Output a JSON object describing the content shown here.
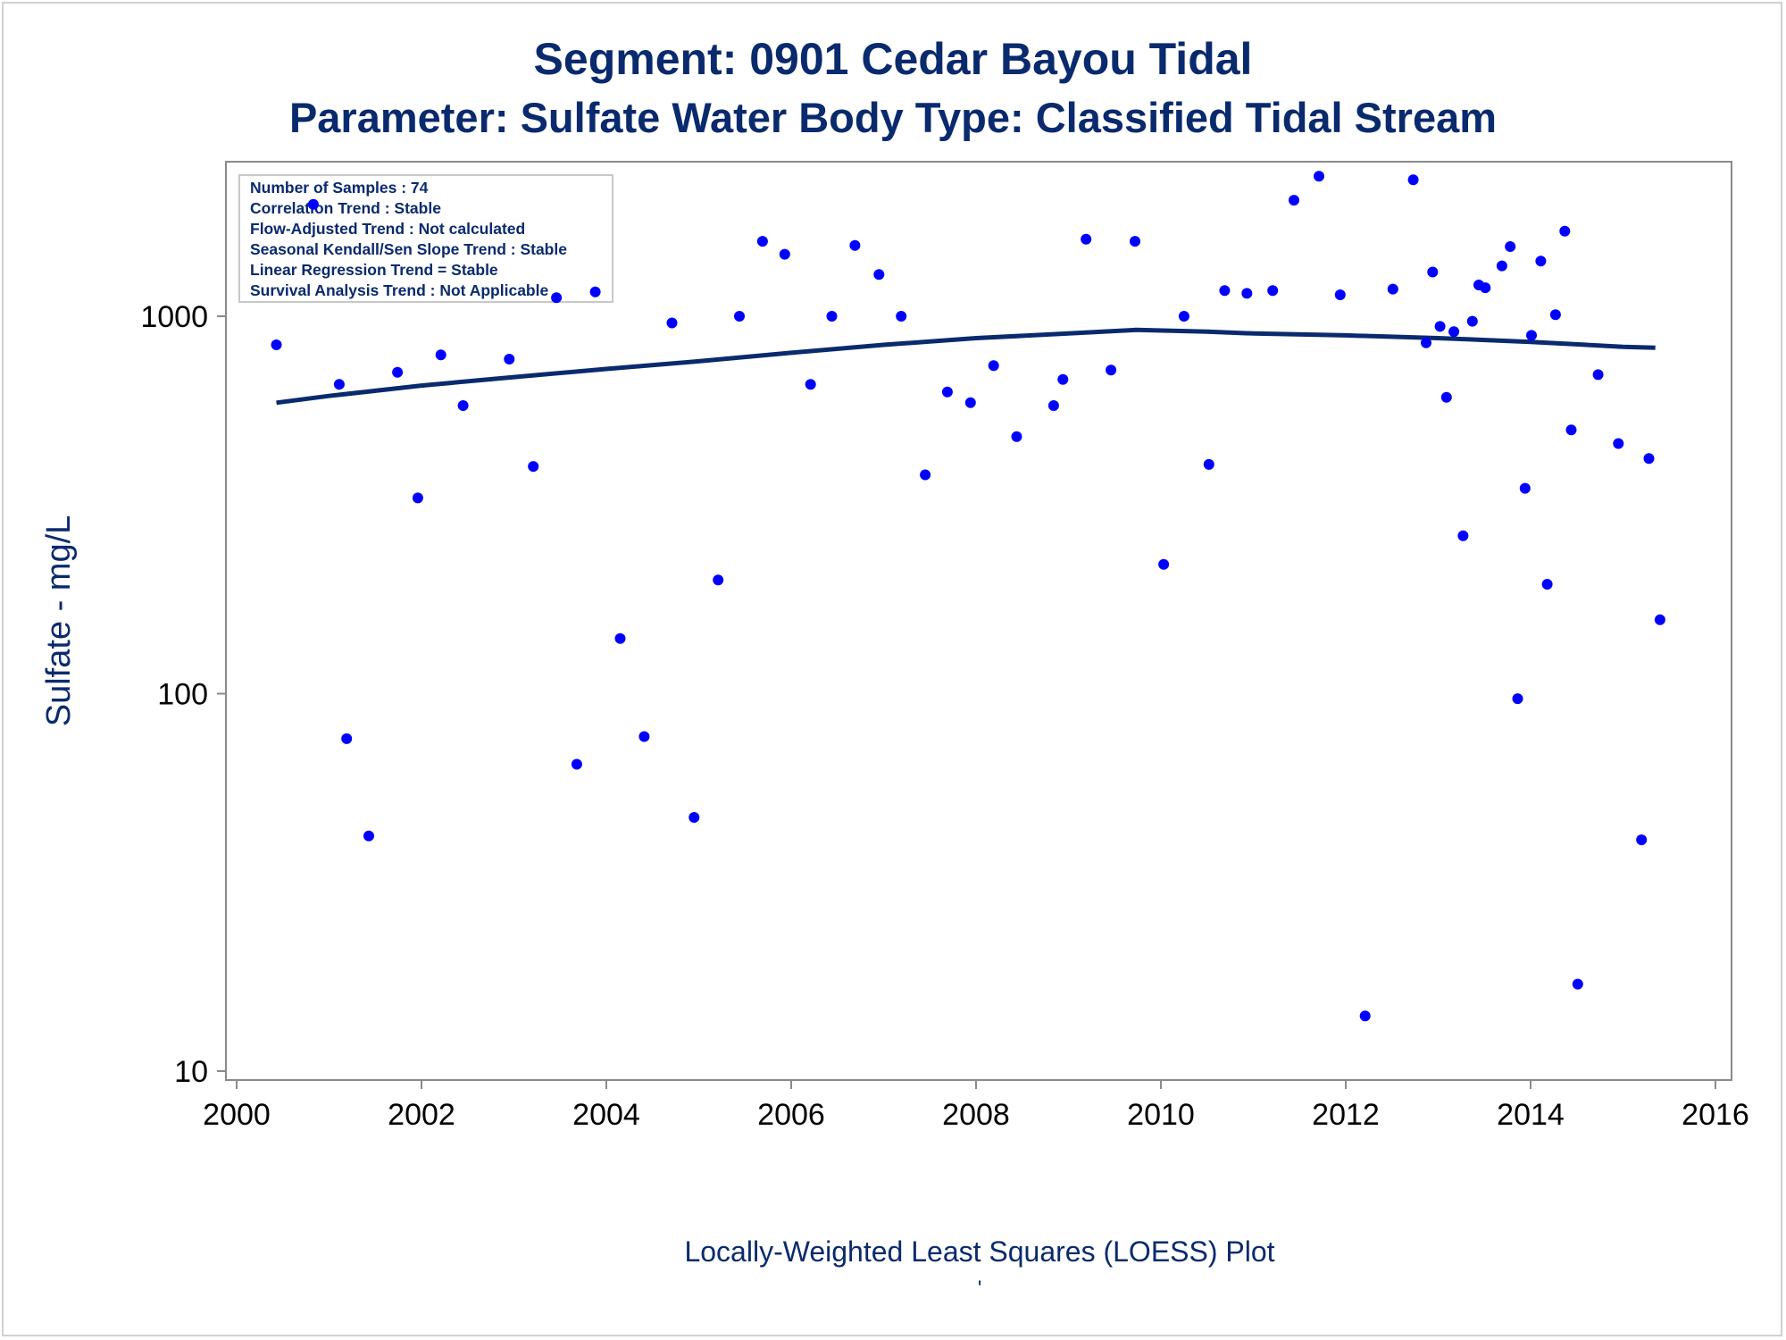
{
  "colors": {
    "title": "#0a2a6e",
    "points": "#0000ff",
    "loess": "#0a2a6e",
    "axis": "#8a8a8a",
    "tick_labels": "#000000"
  },
  "footer": {
    "caption": "Locally-Weighted Least Squares (LOESS) Plot",
    "mark": "'"
  },
  "chart_data": {
    "type": "scatter",
    "title": "Segment: 0901  Cedar Bayou Tidal",
    "subtitle": "Parameter: Sulfate   Water Body Type: Classified Tidal Stream",
    "xlabel": "",
    "ylabel": "Sulfate - mg/L",
    "x_scale": "linear",
    "y_scale": "log",
    "xlim": [
      2000,
      2016
    ],
    "ylim": [
      9.5,
      2600
    ],
    "x_ticks": [
      "2000",
      "2002",
      "2004",
      "2006",
      "2008",
      "2010",
      "2012",
      "2014",
      "2016"
    ],
    "y_ticks": [
      "10",
      "100",
      "1000"
    ],
    "grid": false,
    "legend_position": "top-left",
    "inset_box": [
      "Number of Samples : 74",
      "Correlation Trend : Stable",
      "Flow-Adjusted Trend : Not calculated",
      "Seasonal Kendall/Sen Slope Trend : Stable",
      "Linear Regression Trend = Stable",
      "Survival Analysis Trend : Not Applicable"
    ],
    "series": [
      {
        "kind": "points",
        "points": [
          {
            "x": 2000.43,
            "y": 840
          },
          {
            "x": 2000.83,
            "y": 1980
          },
          {
            "x": 2001.11,
            "y": 660
          },
          {
            "x": 2001.19,
            "y": 76
          },
          {
            "x": 2001.43,
            "y": 42
          },
          {
            "x": 2001.74,
            "y": 710
          },
          {
            "x": 2001.96,
            "y": 330
          },
          {
            "x": 2002.21,
            "y": 790
          },
          {
            "x": 2002.45,
            "y": 580
          },
          {
            "x": 2002.95,
            "y": 770
          },
          {
            "x": 2003.21,
            "y": 400
          },
          {
            "x": 2003.46,
            "y": 1120
          },
          {
            "x": 2003.68,
            "y": 65
          },
          {
            "x": 2003.88,
            "y": 1160
          },
          {
            "x": 2004.15,
            "y": 140
          },
          {
            "x": 2004.41,
            "y": 77
          },
          {
            "x": 2004.71,
            "y": 960
          },
          {
            "x": 2004.95,
            "y": 47
          },
          {
            "x": 2005.21,
            "y": 200
          },
          {
            "x": 2005.44,
            "y": 1000
          },
          {
            "x": 2005.69,
            "y": 1580
          },
          {
            "x": 2005.93,
            "y": 1460
          },
          {
            "x": 2006.21,
            "y": 660
          },
          {
            "x": 2006.44,
            "y": 1000
          },
          {
            "x": 2006.69,
            "y": 1540
          },
          {
            "x": 2006.95,
            "y": 1290
          },
          {
            "x": 2007.19,
            "y": 1000
          },
          {
            "x": 2007.45,
            "y": 380
          },
          {
            "x": 2007.69,
            "y": 630
          },
          {
            "x": 2007.94,
            "y": 590
          },
          {
            "x": 2008.19,
            "y": 740
          },
          {
            "x": 2008.44,
            "y": 480
          },
          {
            "x": 2008.84,
            "y": 580
          },
          {
            "x": 2008.94,
            "y": 680
          },
          {
            "x": 2009.19,
            "y": 1600
          },
          {
            "x": 2009.46,
            "y": 720
          },
          {
            "x": 2009.72,
            "y": 1580
          },
          {
            "x": 2010.03,
            "y": 220
          },
          {
            "x": 2010.25,
            "y": 1000
          },
          {
            "x": 2010.52,
            "y": 405
          },
          {
            "x": 2010.69,
            "y": 1170
          },
          {
            "x": 2010.93,
            "y": 1150
          },
          {
            "x": 2011.21,
            "y": 1170
          },
          {
            "x": 2011.44,
            "y": 2030
          },
          {
            "x": 2011.71,
            "y": 2350
          },
          {
            "x": 2011.94,
            "y": 1140
          },
          {
            "x": 2012.21,
            "y": 14
          },
          {
            "x": 2012.51,
            "y": 1180
          },
          {
            "x": 2012.73,
            "y": 2300
          },
          {
            "x": 2012.87,
            "y": 850
          },
          {
            "x": 2012.94,
            "y": 1310
          },
          {
            "x": 2013.02,
            "y": 940
          },
          {
            "x": 2013.09,
            "y": 610
          },
          {
            "x": 2013.17,
            "y": 910
          },
          {
            "x": 2013.27,
            "y": 262
          },
          {
            "x": 2013.37,
            "y": 970
          },
          {
            "x": 2013.44,
            "y": 1210
          },
          {
            "x": 2013.51,
            "y": 1190
          },
          {
            "x": 2013.69,
            "y": 1360
          },
          {
            "x": 2013.78,
            "y": 1530
          },
          {
            "x": 2013.86,
            "y": 97
          },
          {
            "x": 2013.94,
            "y": 350
          },
          {
            "x": 2014.01,
            "y": 890
          },
          {
            "x": 2014.11,
            "y": 1400
          },
          {
            "x": 2014.18,
            "y": 195
          },
          {
            "x": 2014.27,
            "y": 1010
          },
          {
            "x": 2014.37,
            "y": 1680
          },
          {
            "x": 2014.44,
            "y": 500
          },
          {
            "x": 2014.51,
            "y": 17
          },
          {
            "x": 2014.73,
            "y": 700
          },
          {
            "x": 2014.95,
            "y": 460
          },
          {
            "x": 2015.2,
            "y": 41
          },
          {
            "x": 2015.28,
            "y": 420
          },
          {
            "x": 2015.4,
            "y": 157
          }
        ]
      },
      {
        "kind": "loess",
        "x": [
          2000.43,
          2001.0,
          2002.0,
          2003.0,
          2004.0,
          2005.0,
          2006.0,
          2007.0,
          2008.0,
          2009.0,
          2009.73,
          2010.5,
          2011.0,
          2012.0,
          2013.0,
          2014.0,
          2015.0,
          2015.35
        ],
        "y": [
          590,
          615,
          655,
          690,
          725,
          760,
          800,
          840,
          875,
          900,
          920,
          910,
          900,
          890,
          875,
          855,
          830,
          825
        ]
      }
    ]
  }
}
